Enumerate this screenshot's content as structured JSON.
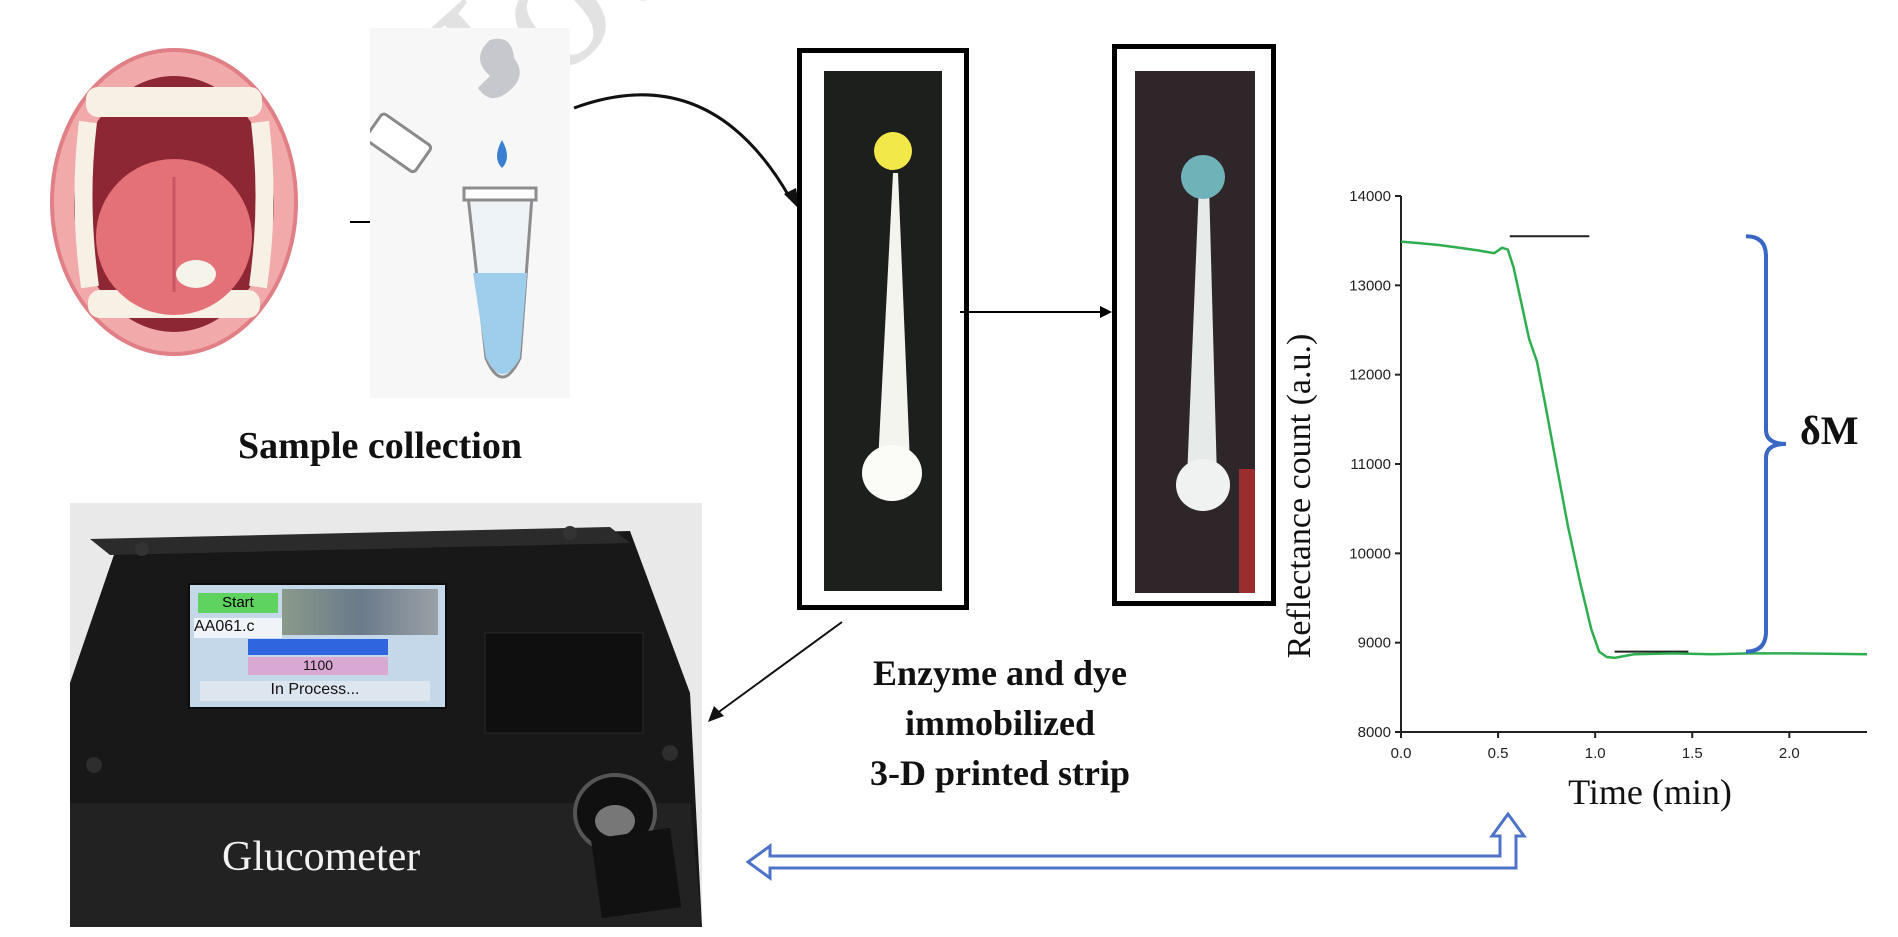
{
  "watermark": "Journal",
  "labels": {
    "sample_collection": "Sample collection",
    "enzyme_line1": "Enzyme and dye",
    "enzyme_line2": "immobilized",
    "enzyme_line3": "3-D printed strip",
    "glucometer": "Glucometer"
  },
  "device_screen": {
    "start_button": "Start",
    "file_name": "AA061.c",
    "value": "1100",
    "status": "In Process..."
  },
  "annotation": "δM",
  "colors": {
    "curve": "#2fae4f",
    "bracket": "#3a66c4",
    "double_arrow": "#4d74c8",
    "strip_dot_before": "#f2e84a",
    "strip_dot_after": "#6fb2b8"
  },
  "chart_data": {
    "type": "line",
    "xlabel": "Time (min)",
    "ylabel": "Reflectance  count  (a.u.)",
    "xlim": [
      0,
      2.4
    ],
    "ylim": [
      8000,
      14000
    ],
    "x_ticks": [
      "0.0",
      "0.5",
      "1.0",
      "1.5",
      "2.0"
    ],
    "x_tick_values": [
      0,
      0.5,
      1.0,
      1.5,
      2.0
    ],
    "y_ticks": [
      "8000",
      "9000",
      "10000",
      "11000",
      "12000",
      "13000",
      "14000"
    ],
    "y_tick_values": [
      8000,
      9000,
      10000,
      11000,
      12000,
      13000,
      14000
    ],
    "series": [
      {
        "x": [
          0,
          0.1,
          0.2,
          0.3,
          0.4,
          0.48,
          0.52,
          0.55,
          0.58,
          0.62,
          0.66,
          0.7,
          0.74,
          0.8,
          0.86,
          0.92,
          0.98,
          1.02,
          1.06,
          1.1,
          1.2,
          1.4,
          1.6,
          1.8,
          2.0,
          2.2,
          2.4
        ],
        "y": [
          13490,
          13470,
          13450,
          13420,
          13390,
          13360,
          13420,
          13400,
          13200,
          12800,
          12400,
          12150,
          11700,
          11000,
          10300,
          9700,
          9150,
          8900,
          8840,
          8830,
          8870,
          8880,
          8870,
          8880,
          8880,
          8875,
          8870
        ]
      }
    ],
    "reference_lines": [
      {
        "x": [
          0.56,
          0.97
        ],
        "y": 13550
      },
      {
        "x": [
          1.1,
          1.48
        ],
        "y": 8900
      }
    ]
  }
}
